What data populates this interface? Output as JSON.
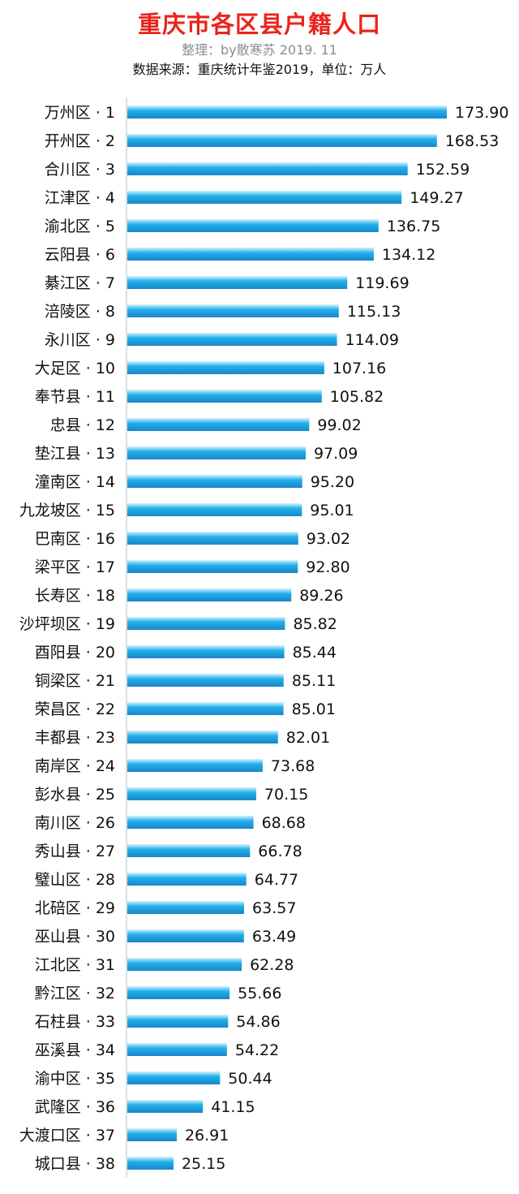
{
  "header": {
    "title": "重庆市各区县户籍人口",
    "credit": "整理：by散寒苏  2019. 11",
    "source": "数据来源：重庆统计年鉴2019，单位：万人"
  },
  "colors": {
    "title": "#e8241c",
    "bar_top": "#d6f2fd",
    "bar_mid": "#21b0ea",
    "bar_bottom": "#1a86c8",
    "axis": "#bfbfbf"
  },
  "chart_data": {
    "type": "bar",
    "orientation": "horizontal",
    "title": "重庆市各区县户籍人口",
    "unit": "万人",
    "categories": [
      "万州区 · 1",
      "开州区 · 2",
      "合川区 · 3",
      "江津区 · 4",
      "渝北区 · 5",
      "云阳县 · 6",
      "綦江区 · 7",
      "涪陵区 · 8",
      "永川区 · 9",
      "大足区 · 10",
      "奉节县 · 11",
      "忠县 · 12",
      "垫江县 · 13",
      "潼南区 · 14",
      "九龙坡区 · 15",
      "巴南区 · 16",
      "梁平区 · 17",
      "长寿区 · 18",
      "沙坪坝区 · 19",
      "酉阳县 · 20",
      "铜梁区 · 21",
      "荣昌区 · 22",
      "丰都县 · 23",
      "南岸区 · 24",
      "彭水县 · 25",
      "南川区 · 26",
      "秀山县 · 27",
      "璧山区 · 28",
      "北碚区 · 29",
      "巫山县 · 30",
      "江北区 · 31",
      "黔江区 · 32",
      "石柱县 · 33",
      "巫溪县 · 34",
      "渝中区 · 35",
      "武隆区 · 36",
      "大渡口区 · 37",
      "城口县 · 38"
    ],
    "values": [
      173.9,
      168.53,
      152.59,
      149.27,
      136.75,
      134.12,
      119.69,
      115.13,
      114.09,
      107.16,
      105.82,
      99.02,
      97.09,
      95.2,
      95.01,
      93.02,
      92.8,
      89.26,
      85.82,
      85.44,
      85.11,
      85.01,
      82.01,
      73.68,
      70.15,
      68.68,
      66.78,
      64.77,
      63.57,
      63.49,
      62.28,
      55.66,
      54.86,
      54.22,
      50.44,
      41.15,
      26.91,
      25.15
    ],
    "value_labels": [
      "173.90",
      "168.53",
      "152.59",
      "149.27",
      "136.75",
      "134.12",
      "119.69",
      "115.13",
      "114.09",
      "107.16",
      "105.82",
      "99.02",
      "97.09",
      "95.20",
      "95.01",
      "93.02",
      "92.80",
      "89.26",
      "85.82",
      "85.44",
      "85.11",
      "85.01",
      "82.01",
      "73.68",
      "70.15",
      "68.68",
      "66.78",
      "64.77",
      "63.57",
      "63.49",
      "62.28",
      "55.66",
      "54.86",
      "54.22",
      "50.44",
      "41.15",
      "26.91",
      "25.15"
    ],
    "xlim": [
      0,
      173.9
    ],
    "grid": false,
    "legend": "none"
  }
}
